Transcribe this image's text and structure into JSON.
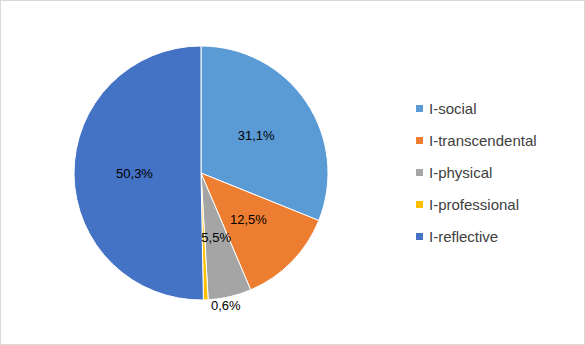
{
  "chart_data": {
    "type": "pie",
    "categories": [
      "I-social",
      "I-transcendental",
      "I-physical",
      "I-professional",
      "I-reflective"
    ],
    "values": [
      31.1,
      12.5,
      5.5,
      0.6,
      50.3
    ],
    "value_labels": [
      "31,1%",
      "12,5%",
      "5,5%",
      "0,6%",
      "50,3%"
    ],
    "colors": [
      "#5b9bd5",
      "#ed7d31",
      "#a5a5a5",
      "#ffc000",
      "#4472c4"
    ],
    "data_labels": true,
    "legend": "right"
  }
}
